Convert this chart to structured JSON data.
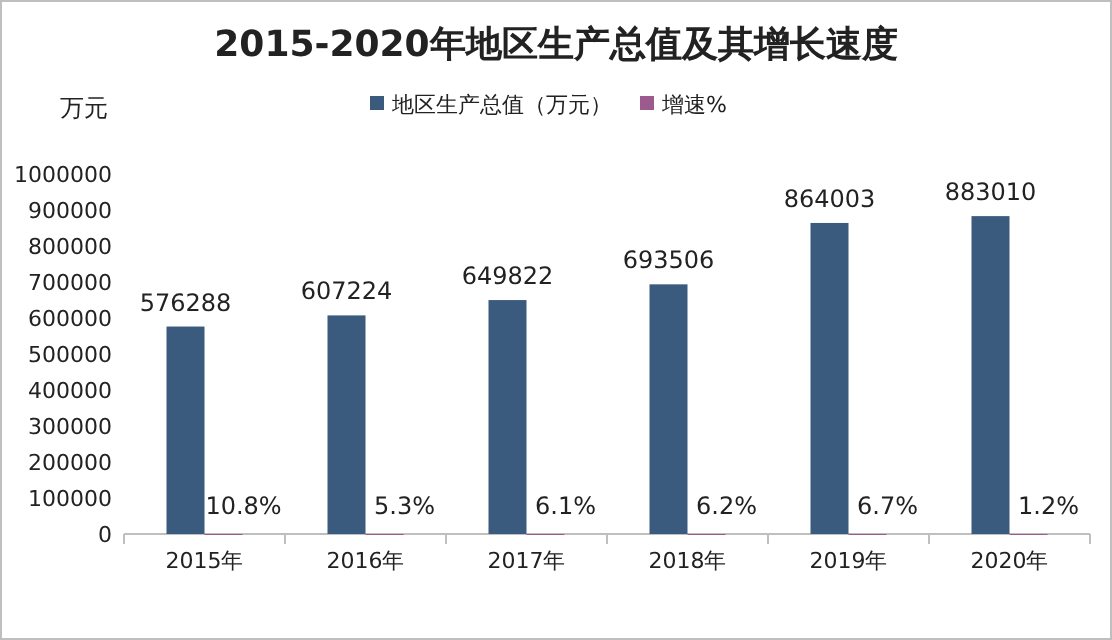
{
  "chart_data": {
    "type": "bar",
    "title": "2015-2020年地区生产总值及其增长速度",
    "ylabel": "万元",
    "categories": [
      "2015年",
      "2016年",
      "2017年",
      "2018年",
      "2019年",
      "2020年"
    ],
    "series": [
      {
        "name": "地区生产总值（万元）",
        "color": "#3b5b7e",
        "values": [
          576288,
          607224,
          649822,
          693506,
          864003,
          883010
        ],
        "value_labels": [
          "576288",
          "607224",
          "649822",
          "693506",
          "864003",
          "883010"
        ]
      },
      {
        "name": "增速%",
        "color": "#9c5b8f",
        "values": [
          10.8,
          5.3,
          6.1,
          6.2,
          6.7,
          1.2
        ],
        "value_labels": [
          "10.8%",
          "5.3%",
          "6.1%",
          "6.2%",
          "6.7%",
          "1.2%"
        ]
      }
    ],
    "ylim": [
      0,
      1000000
    ],
    "yticks": [
      0,
      100000,
      200000,
      300000,
      400000,
      500000,
      600000,
      700000,
      800000,
      900000,
      1000000
    ],
    "grid": false,
    "legend": "top"
  }
}
